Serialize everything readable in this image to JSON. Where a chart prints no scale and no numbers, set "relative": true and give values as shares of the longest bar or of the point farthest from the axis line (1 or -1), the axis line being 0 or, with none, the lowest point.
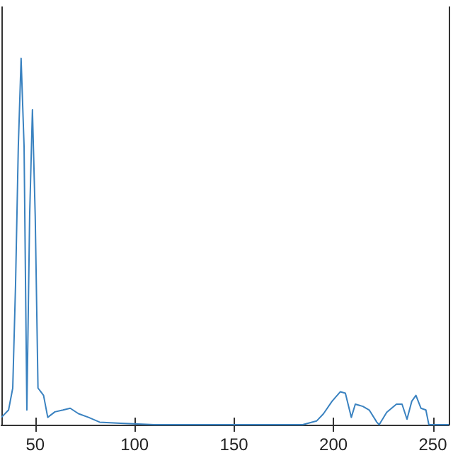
{
  "chart_data": {
    "type": "line",
    "relative": true,
    "color": "#3a82c0",
    "x": [
      33,
      36.6,
      38.7,
      40.1,
      41.5,
      42.9,
      44.4,
      45.8,
      47.2,
      48.6,
      50,
      51.4,
      52.8,
      54.2,
      56.3,
      59.9,
      64,
      67.6,
      71.8,
      76.8,
      82.4,
      93,
      110,
      130,
      150,
      170,
      184.5,
      191.5,
      195,
      199.3,
      203.5,
      206,
      209,
      211,
      214.8,
      218,
      221.8,
      223,
      226.8,
      231.7,
      234.5,
      237,
      239.4,
      241.5,
      244,
      246.5,
      248,
      252,
      258
    ],
    "values": [
      0.02,
      0.04,
      0.1,
      0.38,
      0.76,
      1,
      0.76,
      0.04,
      0.57,
      0.86,
      0.57,
      0.1,
      0.09,
      0.08,
      0.02,
      0.035,
      0.04,
      0.045,
      0.03,
      0.02,
      0.007,
      0.004,
      0,
      0,
      0,
      0,
      0,
      0.01,
      0.03,
      0.064,
      0.09,
      0.086,
      0.02,
      0.056,
      0.05,
      0.04,
      0.007,
      0,
      0.034,
      0.056,
      0.056,
      0.015,
      0.064,
      0.08,
      0.045,
      0.04,
      0,
      0,
      0
    ],
    "xlim": [
      33,
      258
    ],
    "xticks": [
      50,
      100,
      150,
      200,
      250
    ],
    "grid": false,
    "marker": "none",
    "line_style": "solid"
  }
}
